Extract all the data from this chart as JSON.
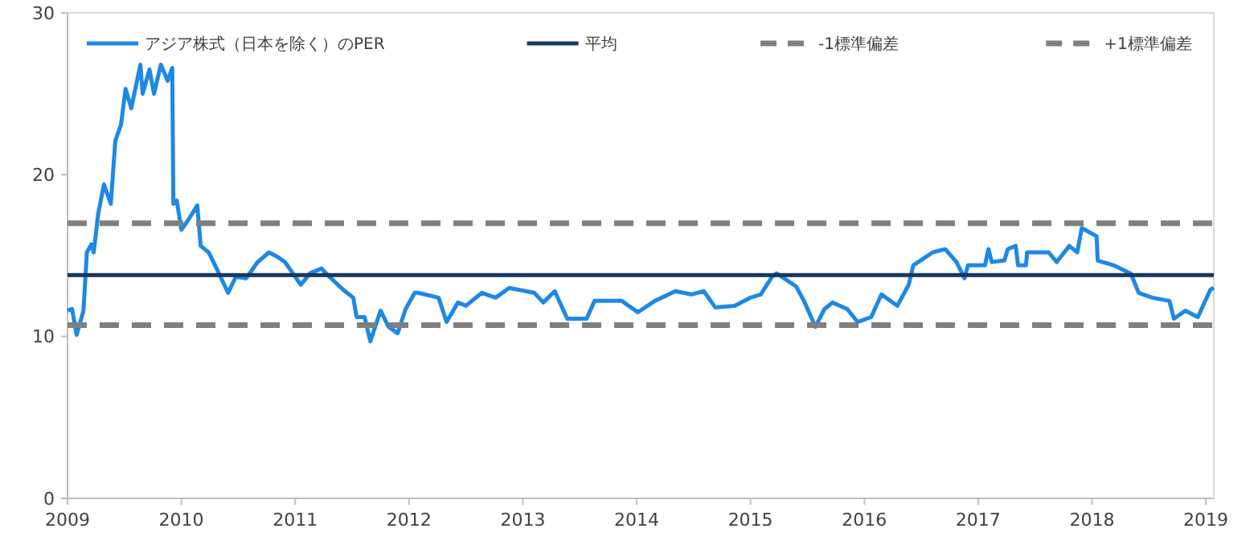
{
  "chart_data": {
    "type": "line",
    "legend": "top",
    "xlim": [
      2009,
      2019.07
    ],
    "xticks": [
      2009,
      2010,
      2011,
      2012,
      2013,
      2014,
      2015,
      2016,
      2017,
      2018,
      2019
    ],
    "ylim": [
      0,
      30
    ],
    "yticks": [
      0,
      10,
      20,
      30
    ],
    "series": [
      {
        "name": "アジア株式（日本を除く）のPER",
        "color": "#1e88e5",
        "x": [
          2009.0,
          2009.04,
          2009.08,
          2009.14,
          2009.17,
          2009.21,
          2009.23,
          2009.27,
          2009.32,
          2009.38,
          2009.42,
          2009.47,
          2009.51,
          2009.56,
          2009.64,
          2009.66,
          2009.72,
          2009.76,
          2009.82,
          2009.88,
          2009.92,
          2009.93,
          2009.96,
          2010.0,
          2010.06,
          2010.14,
          2010.17,
          2010.24,
          2010.31,
          2010.41,
          2010.48,
          2010.57,
          2010.67,
          2010.77,
          2010.85,
          2010.91,
          2010.98,
          2011.05,
          2011.13,
          2011.23,
          2011.3,
          2011.42,
          2011.51,
          2011.54,
          2011.61,
          2011.66,
          2011.75,
          2011.82,
          2011.9,
          2011.97,
          2012.05,
          2012.08,
          2012.26,
          2012.33,
          2012.43,
          2012.5,
          2012.64,
          2012.76,
          2012.88,
          2013.1,
          2013.18,
          2013.28,
          2013.39,
          2013.56,
          2013.63,
          2013.87,
          2014.01,
          2014.16,
          2014.34,
          2014.48,
          2014.59,
          2014.69,
          2014.86,
          2015.0,
          2015.09,
          2015.19,
          2015.23,
          2015.4,
          2015.47,
          2015.57,
          2015.65,
          2015.72,
          2015.85,
          2015.94,
          2016.06,
          2016.15,
          2016.29,
          2016.39,
          2016.43,
          2016.6,
          2016.71,
          2016.81,
          2016.88,
          2016.91,
          2017.06,
          2017.09,
          2017.12,
          2017.23,
          2017.26,
          2017.33,
          2017.35,
          2017.42,
          2017.43,
          2017.62,
          2017.69,
          2017.8,
          2017.87,
          2017.91,
          2018.04,
          2018.05,
          2018.19,
          2018.34,
          2018.41,
          2018.53,
          2018.68,
          2018.72,
          2018.82,
          2018.93,
          2019.04,
          2019.07
        ],
        "values": [
          11.6,
          11.7,
          10.1,
          11.6,
          15.2,
          15.7,
          15.2,
          17.6,
          19.4,
          18.2,
          22.1,
          23.1,
          25.3,
          24.1,
          26.8,
          25.0,
          26.5,
          25.0,
          26.8,
          25.8,
          26.6,
          18.2,
          18.4,
          16.6,
          17.2,
          18.1,
          15.6,
          15.2,
          14.2,
          12.7,
          13.7,
          13.6,
          14.6,
          15.2,
          14.9,
          14.6,
          13.9,
          13.2,
          13.9,
          14.2,
          13.7,
          12.9,
          12.4,
          11.2,
          11.2,
          9.7,
          11.6,
          10.6,
          10.2,
          11.7,
          12.7,
          12.7,
          12.4,
          10.9,
          12.1,
          11.9,
          12.7,
          12.4,
          13.0,
          12.7,
          12.1,
          12.8,
          11.1,
          11.1,
          12.2,
          12.2,
          11.5,
          12.2,
          12.8,
          12.6,
          12.8,
          11.8,
          11.9,
          12.4,
          12.6,
          13.7,
          13.9,
          13.1,
          12.2,
          10.6,
          11.7,
          12.1,
          11.7,
          10.9,
          11.2,
          12.6,
          11.9,
          13.2,
          14.4,
          15.2,
          15.4,
          14.6,
          13.6,
          14.4,
          14.4,
          15.4,
          14.6,
          14.7,
          15.4,
          15.6,
          14.4,
          14.4,
          15.2,
          15.2,
          14.6,
          15.6,
          15.2,
          16.7,
          16.2,
          14.7,
          14.4,
          13.9,
          12.7,
          12.4,
          12.2,
          11.1,
          11.6,
          11.2,
          12.9,
          13.0
        ]
      },
      {
        "name": "平均",
        "color": "#17375e",
        "x": [
          2009,
          2019.07
        ],
        "values": [
          13.8,
          13.8
        ]
      },
      {
        "name": "-1標準偏差",
        "color": "#7f7f7f",
        "line_style": "dashed",
        "x": [
          2009,
          2019.07
        ],
        "values": [
          10.7,
          10.7
        ]
      },
      {
        "name": "+1標準偏差",
        "color": "#7f7f7f",
        "line_style": "dashed",
        "x": [
          2009,
          2019.07
        ],
        "values": [
          17.0,
          17.0
        ]
      }
    ]
  }
}
